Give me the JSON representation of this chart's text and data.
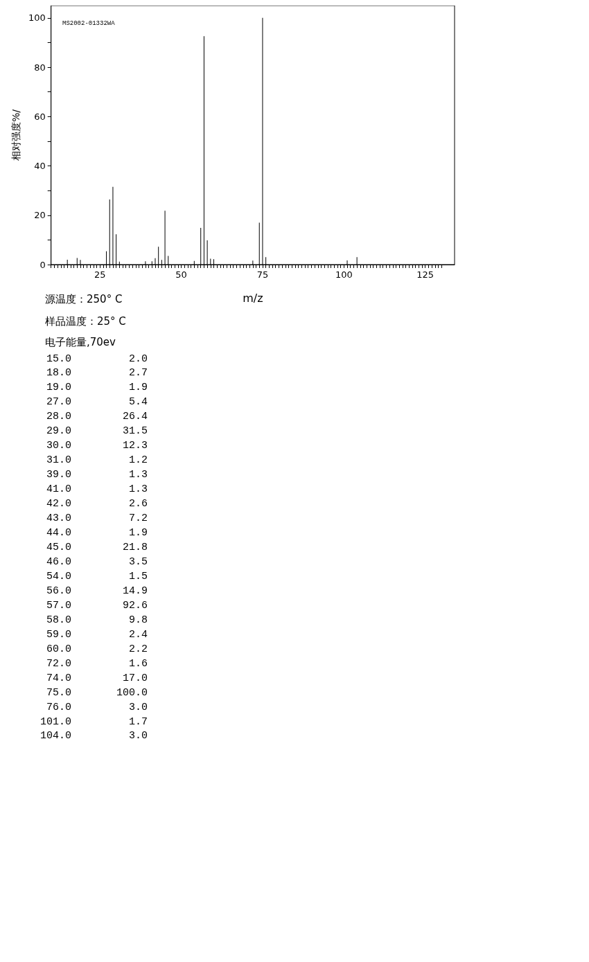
{
  "chart_data": [
    {
      "type": "bar",
      "xlabel": "m/z",
      "ylabel": "相对强度%/",
      "x": [
        15,
        18,
        19,
        27,
        28,
        29,
        30,
        31,
        39,
        41,
        42,
        43,
        44,
        45,
        46,
        54,
        56,
        57,
        58,
        59,
        60,
        72,
        74,
        75,
        76,
        101,
        104
      ],
      "values": [
        2.0,
        2.7,
        1.9,
        5.4,
        26.4,
        31.5,
        12.3,
        1.2,
        1.3,
        1.3,
        2.6,
        7.2,
        1.9,
        21.8,
        3.5,
        1.5,
        14.9,
        92.6,
        9.8,
        2.4,
        2.2,
        1.6,
        17.0,
        100.0,
        3.0,
        1.7,
        3.0
      ],
      "color": "#000000",
      "xlim": [
        10,
        134
      ],
      "xticks": [
        {
          "value": 10,
          "label": null
        },
        {
          "value": 11,
          "label": null
        },
        {
          "value": 12,
          "label": null
        },
        {
          "value": 13,
          "label": null
        },
        {
          "value": 14,
          "label": null
        },
        {
          "value": 15,
          "label": null
        },
        {
          "value": 16,
          "label": null
        },
        {
          "value": 17,
          "label": null
        },
        {
          "value": 18,
          "label": null
        },
        {
          "value": 19,
          "label": null
        },
        {
          "value": 20,
          "label": null
        },
        {
          "value": 21,
          "label": null
        },
        {
          "value": 22,
          "label": null
        },
        {
          "value": 23,
          "label": null
        },
        {
          "value": 24,
          "label": null
        },
        25,
        {
          "value": 26,
          "label": null
        },
        {
          "value": 27,
          "label": null
        },
        {
          "value": 28,
          "label": null
        },
        {
          "value": 29,
          "label": null
        },
        {
          "value": 30,
          "label": null
        },
        {
          "value": 31,
          "label": null
        },
        {
          "value": 32,
          "label": null
        },
        {
          "value": 33,
          "label": null
        },
        {
          "value": 34,
          "label": null
        },
        {
          "value": 35,
          "label": null
        },
        {
          "value": 36,
          "label": null
        },
        {
          "value": 37,
          "label": null
        },
        {
          "value": 38,
          "label": null
        },
        {
          "value": 39,
          "label": null
        },
        {
          "value": 40,
          "label": null
        },
        {
          "value": 41,
          "label": null
        },
        {
          "value": 42,
          "label": null
        },
        {
          "value": 43,
          "label": null
        },
        {
          "value": 44,
          "label": null
        },
        {
          "value": 45,
          "label": null
        },
        {
          "value": 46,
          "label": null
        },
        {
          "value": 47,
          "label": null
        },
        {
          "value": 48,
          "label": null
        },
        {
          "value": 49,
          "label": null
        },
        50,
        {
          "value": 51,
          "label": null
        },
        {
          "value": 52,
          "label": null
        },
        {
          "value": 53,
          "label": null
        },
        {
          "value": 54,
          "label": null
        },
        {
          "value": 55,
          "label": null
        },
        {
          "value": 56,
          "label": null
        },
        {
          "value": 57,
          "label": null
        },
        {
          "value": 58,
          "label": null
        },
        {
          "value": 59,
          "label": null
        },
        {
          "value": 60,
          "label": null
        },
        {
          "value": 61,
          "label": null
        },
        {
          "value": 62,
          "label": null
        },
        {
          "value": 63,
          "label": null
        },
        {
          "value": 64,
          "label": null
        },
        {
          "value": 65,
          "label": null
        },
        {
          "value": 66,
          "label": null
        },
        {
          "value": 67,
          "label": null
        },
        {
          "value": 68,
          "label": null
        },
        {
          "value": 69,
          "label": null
        },
        {
          "value": 70,
          "label": null
        },
        {
          "value": 71,
          "label": null
        },
        {
          "value": 72,
          "label": null
        },
        {
          "value": 73,
          "label": null
        },
        {
          "value": 74,
          "label": null
        },
        75,
        {
          "value": 76,
          "label": null
        },
        {
          "value": 77,
          "label": null
        },
        {
          "value": 78,
          "label": null
        },
        {
          "value": 79,
          "label": null
        },
        {
          "value": 80,
          "label": null
        },
        {
          "value": 81,
          "label": null
        },
        {
          "value": 82,
          "label": null
        },
        {
          "value": 83,
          "label": null
        },
        {
          "value": 84,
          "label": null
        },
        {
          "value": 85,
          "label": null
        },
        {
          "value": 86,
          "label": null
        },
        {
          "value": 87,
          "label": null
        },
        {
          "value": 88,
          "label": null
        },
        {
          "value": 89,
          "label": null
        },
        {
          "value": 90,
          "label": null
        },
        {
          "value": 91,
          "label": null
        },
        {
          "value": 92,
          "label": null
        },
        {
          "value": 93,
          "label": null
        },
        {
          "value": 94,
          "label": null
        },
        {
          "value": 95,
          "label": null
        },
        {
          "value": 96,
          "label": null
        },
        {
          "value": 97,
          "label": null
        },
        {
          "value": 98,
          "label": null
        },
        {
          "value": 99,
          "label": null
        },
        100,
        {
          "value": 101,
          "label": null
        },
        {
          "value": 102,
          "label": null
        },
        {
          "value": 103,
          "label": null
        },
        {
          "value": 104,
          "label": null
        },
        {
          "value": 105,
          "label": null
        },
        {
          "value": 106,
          "label": null
        },
        {
          "value": 107,
          "label": null
        },
        {
          "value": 108,
          "label": null
        },
        {
          "value": 109,
          "label": null
        },
        {
          "value": 110,
          "label": null
        },
        {
          "value": 111,
          "label": null
        },
        {
          "value": 112,
          "label": null
        },
        {
          "value": 113,
          "label": null
        },
        {
          "value": 114,
          "label": null
        },
        {
          "value": 115,
          "label": null
        },
        {
          "value": 116,
          "label": null
        },
        {
          "value": 117,
          "label": null
        },
        {
          "value": 118,
          "label": null
        },
        {
          "value": 119,
          "label": null
        },
        {
          "value": 120,
          "label": null
        },
        {
          "value": 121,
          "label": null
        },
        {
          "value": 122,
          "label": null
        },
        {
          "value": 123,
          "label": null
        },
        {
          "value": 124,
          "label": null
        },
        125,
        {
          "value": 126,
          "label": null
        },
        {
          "value": 127,
          "label": null
        },
        {
          "value": 128,
          "label": null
        },
        {
          "value": 129,
          "label": null
        },
        {
          "value": 130,
          "label": null
        }
      ],
      "ylim": [
        0,
        105
      ],
      "yticks": [
        0,
        {
          "value": 10,
          "label": null
        },
        20,
        {
          "value": 30,
          "label": null
        },
        40,
        {
          "value": 50,
          "label": null
        },
        60,
        {
          "value": 70,
          "label": null
        },
        80,
        {
          "value": 90,
          "label": null
        },
        100
      ],
      "annotations": [
        "MS2002-01332WA",
        "源温度：250° C",
        "样品温度：25° C",
        "电子能量,70ev"
      ]
    },
    {
      "type": "other",
      "categories": [
        "15.0",
        "18.0",
        "19.0",
        "27.0",
        "28.0",
        "29.0",
        "30.0",
        "31.0",
        "39.0",
        "41.0",
        "42.0",
        "43.0",
        "44.0",
        "45.0",
        "46.0",
        "54.0",
        "56.0",
        "57.0",
        "58.0",
        "59.0",
        "60.0",
        "72.0",
        "74.0",
        "75.0",
        "76.0",
        "101.0",
        "104.0"
      ],
      "values": [
        2.0,
        2.7,
        1.9,
        5.4,
        26.4,
        31.5,
        12.3,
        1.2,
        1.3,
        1.3,
        2.6,
        7.2,
        1.9,
        21.8,
        3.5,
        1.5,
        14.9,
        92.6,
        9.8,
        2.4,
        2.2,
        1.6,
        17.0,
        100.0,
        3.0,
        1.7,
        3.0
      ],
      "value_labels": [
        "2.0",
        "2.7",
        "1.9",
        "5.4",
        "26.4",
        "31.5",
        "12.3",
        "1.2",
        "1.3",
        "1.3",
        "2.6",
        "7.2",
        "1.9",
        "21.8",
        "3.5",
        "1.5",
        "14.9",
        "92.6",
        "9.8",
        "2.4",
        "2.2",
        "1.6",
        "17.0",
        "100.0",
        "3.0",
        "1.7",
        "3.0"
      ]
    }
  ]
}
